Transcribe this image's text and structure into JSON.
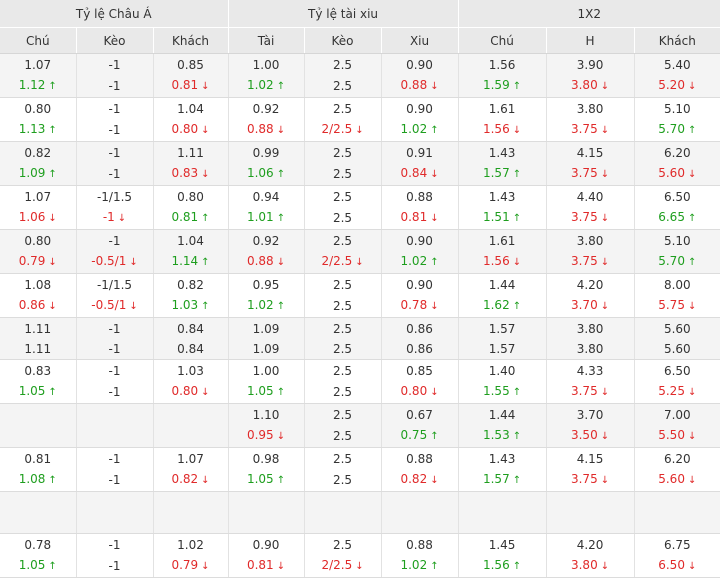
{
  "groups": [
    {
      "label": "Tỷ lệ Châu Á"
    },
    {
      "label": "Tỷ lệ tài xiu"
    },
    {
      "label": "1X2"
    }
  ],
  "columns": [
    "Chú",
    "Kèo",
    "Khách",
    "Tài",
    "Kèo",
    "Xiu",
    "Chú",
    "H",
    "Khách"
  ],
  "arrows": {
    "up": "↑",
    "down": "↓"
  },
  "colors": {
    "up": "#1e9e1e",
    "down": "#e02a2a",
    "shade": "#f4f4f4",
    "header": "#e9e9e9"
  },
  "rows": [
    {
      "shade": true,
      "top": [
        "1.07",
        "-1",
        "0.85",
        "1.00",
        "2.5",
        "0.90",
        "1.56",
        "3.90",
        "5.40"
      ],
      "bot": [
        [
          "1.12",
          "up"
        ],
        [
          "-1",
          ""
        ],
        [
          "0.81",
          "dn"
        ],
        [
          "1.02",
          "up"
        ],
        [
          "2.5",
          ""
        ],
        [
          "0.88",
          "dn"
        ],
        [
          "1.59",
          "up"
        ],
        [
          "3.80",
          "dn"
        ],
        [
          "5.20",
          "dn"
        ]
      ]
    },
    {
      "shade": false,
      "top": [
        "0.80",
        "-1",
        "1.04",
        "0.92",
        "2.5",
        "0.90",
        "1.61",
        "3.80",
        "5.10"
      ],
      "bot": [
        [
          "1.13",
          "up"
        ],
        [
          "-1",
          ""
        ],
        [
          "0.80",
          "dn"
        ],
        [
          "0.88",
          "dn"
        ],
        [
          "2/2.5",
          "dn"
        ],
        [
          "1.02",
          "up"
        ],
        [
          "1.56",
          "dn"
        ],
        [
          "3.75",
          "dn"
        ],
        [
          "5.70",
          "up"
        ]
      ]
    },
    {
      "shade": true,
      "top": [
        "0.82",
        "-1",
        "1.11",
        "0.99",
        "2.5",
        "0.91",
        "1.43",
        "4.15",
        "6.20"
      ],
      "bot": [
        [
          "1.09",
          "up"
        ],
        [
          "-1",
          ""
        ],
        [
          "0.83",
          "dn"
        ],
        [
          "1.06",
          "up"
        ],
        [
          "2.5",
          ""
        ],
        [
          "0.84",
          "dn"
        ],
        [
          "1.57",
          "up"
        ],
        [
          "3.75",
          "dn"
        ],
        [
          "5.60",
          "dn"
        ]
      ]
    },
    {
      "shade": false,
      "top": [
        "1.07",
        "-1/1.5",
        "0.80",
        "0.94",
        "2.5",
        "0.88",
        "1.43",
        "4.40",
        "6.50"
      ],
      "bot": [
        [
          "1.06",
          "dn"
        ],
        [
          "-1",
          "dn"
        ],
        [
          "0.81",
          "up"
        ],
        [
          "1.01",
          "up"
        ],
        [
          "2.5",
          ""
        ],
        [
          "0.81",
          "dn"
        ],
        [
          "1.51",
          "up"
        ],
        [
          "3.75",
          "dn"
        ],
        [
          "6.65",
          "up"
        ]
      ]
    },
    {
      "shade": true,
      "top": [
        "0.80",
        "-1",
        "1.04",
        "0.92",
        "2.5",
        "0.90",
        "1.61",
        "3.80",
        "5.10"
      ],
      "bot": [
        [
          "0.79",
          "dn"
        ],
        [
          "-0.5/1",
          "dn"
        ],
        [
          "1.14",
          "up"
        ],
        [
          "0.88",
          "dn"
        ],
        [
          "2/2.5",
          "dn"
        ],
        [
          "1.02",
          "up"
        ],
        [
          "1.56",
          "dn"
        ],
        [
          "3.75",
          "dn"
        ],
        [
          "5.70",
          "up"
        ]
      ]
    },
    {
      "shade": false,
      "top": [
        "1.08",
        "-1/1.5",
        "0.82",
        "0.95",
        "2.5",
        "0.90",
        "1.44",
        "4.20",
        "8.00"
      ],
      "bot": [
        [
          "0.86",
          "dn"
        ],
        [
          "-0.5/1",
          "dn"
        ],
        [
          "1.03",
          "up"
        ],
        [
          "1.02",
          "up"
        ],
        [
          "2.5",
          ""
        ],
        [
          "0.78",
          "dn"
        ],
        [
          "1.62",
          "up"
        ],
        [
          "3.70",
          "dn"
        ],
        [
          "5.75",
          "dn"
        ]
      ]
    },
    {
      "shade": true,
      "top": [
        "1.11",
        "-1",
        "0.84",
        "1.09",
        "2.5",
        "0.86",
        "1.57",
        "3.80",
        "5.60"
      ],
      "bot": [
        [
          "1.11",
          ""
        ],
        [
          "-1",
          ""
        ],
        [
          "0.84",
          ""
        ],
        [
          "1.09",
          ""
        ],
        [
          "2.5",
          ""
        ],
        [
          "0.86",
          ""
        ],
        [
          "1.57",
          ""
        ],
        [
          "3.80",
          ""
        ],
        [
          "5.60",
          ""
        ]
      ]
    },
    {
      "shade": false,
      "top": [
        "0.83",
        "-1",
        "1.03",
        "1.00",
        "2.5",
        "0.85",
        "1.40",
        "4.33",
        "6.50"
      ],
      "bot": [
        [
          "1.05",
          "up"
        ],
        [
          "-1",
          ""
        ],
        [
          "0.80",
          "dn"
        ],
        [
          "1.05",
          "up"
        ],
        [
          "2.5",
          ""
        ],
        [
          "0.80",
          "dn"
        ],
        [
          "1.55",
          "up"
        ],
        [
          "3.75",
          "dn"
        ],
        [
          "5.25",
          "dn"
        ]
      ]
    },
    {
      "shade": true,
      "top": [
        "",
        "",
        "",
        "1.10",
        "2.5",
        "0.67",
        "1.44",
        "3.70",
        "7.00"
      ],
      "bot": [
        [
          "",
          ""
        ],
        [
          "",
          ""
        ],
        [
          "",
          ""
        ],
        [
          "0.95",
          "dn"
        ],
        [
          "2.5",
          ""
        ],
        [
          "0.75",
          "up"
        ],
        [
          "1.53",
          "up"
        ],
        [
          "3.50",
          "dn"
        ],
        [
          "5.50",
          "dn"
        ]
      ]
    },
    {
      "shade": false,
      "top": [
        "0.81",
        "-1",
        "1.07",
        "0.98",
        "2.5",
        "0.88",
        "1.43",
        "4.15",
        "6.20"
      ],
      "bot": [
        [
          "1.08",
          "up"
        ],
        [
          "-1",
          ""
        ],
        [
          "0.82",
          "dn"
        ],
        [
          "1.05",
          "up"
        ],
        [
          "2.5",
          ""
        ],
        [
          "0.82",
          "dn"
        ],
        [
          "1.57",
          "up"
        ],
        [
          "3.75",
          "dn"
        ],
        [
          "5.60",
          "dn"
        ]
      ]
    },
    {
      "shade": true,
      "top": [
        "",
        "",
        "",
        "",
        "",
        "",
        "",
        "",
        ""
      ],
      "bot": [
        [
          "",
          ""
        ],
        [
          "",
          ""
        ],
        [
          "",
          ""
        ],
        [
          "",
          ""
        ],
        [
          "",
          ""
        ],
        [
          "",
          ""
        ],
        [
          "",
          ""
        ],
        [
          "",
          ""
        ],
        [
          "",
          ""
        ]
      ]
    },
    {
      "shade": false,
      "top": [
        "0.78",
        "-1",
        "1.02",
        "0.90",
        "2.5",
        "0.88",
        "1.45",
        "4.20",
        "6.75"
      ],
      "bot": [
        [
          "1.05",
          "up"
        ],
        [
          "-1",
          ""
        ],
        [
          "0.79",
          "dn"
        ],
        [
          "0.81",
          "dn"
        ],
        [
          "2/2.5",
          "dn"
        ],
        [
          "1.02",
          "up"
        ],
        [
          "1.56",
          "up"
        ],
        [
          "3.80",
          "dn"
        ],
        [
          "6.50",
          "dn"
        ]
      ]
    }
  ]
}
